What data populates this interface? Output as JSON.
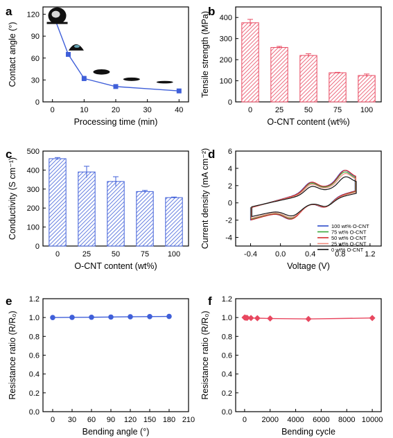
{
  "colors": {
    "blue": "#3f5fd9",
    "red": "#e8475f",
    "axis": "#000000"
  },
  "chart_data": [
    {
      "id": "a",
      "panel_letter": "a",
      "type": "line",
      "xlabel": "Processing time (min)",
      "ylabel": "Contact angle (°)",
      "xlim": [
        -3,
        43
      ],
      "ylim": [
        0,
        130
      ],
      "xticks": [
        0,
        10,
        20,
        30,
        40
      ],
      "yticks": [
        0,
        30,
        60,
        90,
        120
      ],
      "x": [
        0,
        5,
        10,
        20,
        40
      ],
      "series": [
        {
          "values": [
            122,
            65,
            32,
            21,
            15
          ],
          "errors": [
            1.5,
            2.5,
            3,
            1,
            1
          ],
          "color": "#3f5fd9",
          "marker": "square"
        }
      ],
      "droplets": [
        {
          "x": 1.5,
          "y": 118,
          "shape": "sphere"
        },
        {
          "x": 7.5,
          "y": 76,
          "shape": "cap"
        },
        {
          "x": 15.5,
          "y": 41,
          "shape": "lens"
        },
        {
          "x": 25,
          "y": 31,
          "shape": "thin"
        },
        {
          "x": 35.5,
          "y": 27,
          "shape": "film"
        }
      ]
    },
    {
      "id": "b",
      "panel_letter": "b",
      "type": "bar",
      "xlabel": "O-CNT content (wt%)",
      "ylabel": "Tensile strength (MPa)",
      "categories": [
        "0",
        "25",
        "50",
        "75",
        "100"
      ],
      "values": [
        375,
        258,
        220,
        138,
        125
      ],
      "errors": [
        16,
        5,
        8,
        2,
        7
      ],
      "ylim": [
        0,
        450
      ],
      "yticks": [
        0,
        100,
        200,
        300,
        400
      ],
      "color": "#e8475f"
    },
    {
      "id": "c",
      "panel_letter": "c",
      "type": "bar",
      "xlabel": "O-CNT content (wt%)",
      "ylabel": "Conductivity (S cm⁻¹)",
      "categories": [
        "0",
        "25",
        "50",
        "75",
        "100"
      ],
      "values": [
        460,
        390,
        340,
        287,
        255
      ],
      "errors": [
        6,
        30,
        25,
        6,
        3
      ],
      "ylim": [
        0,
        500
      ],
      "yticks": [
        0,
        100,
        200,
        300,
        400,
        500
      ],
      "color": "#3f5fd9"
    },
    {
      "id": "d",
      "panel_letter": "d",
      "type": "line",
      "xlabel": "Voltage (V)",
      "ylabel": "Current density (mA cm⁻²)",
      "xlim": [
        -0.6,
        1.35
      ],
      "ylim": [
        -5,
        6
      ],
      "xticks": [
        -0.4,
        0.0,
        0.4,
        0.8,
        1.2
      ],
      "yticks": [
        -4,
        -2,
        0,
        2,
        4,
        6
      ],
      "legend_position": "bottom-right",
      "series": [
        {
          "name": "100 wt% O-CNT",
          "color": "#2a49c9",
          "scale": 1.0
        },
        {
          "name": "75 wt% O-CNT",
          "color": "#3aa83a",
          "scale": 0.95
        },
        {
          "name": "50 wt% O-CNT",
          "color": "#d42a2a",
          "scale": 1.0
        },
        {
          "name": "25 wt% O-CNT",
          "color": "#f08a7c",
          "scale": 0.9
        },
        {
          "name": "0 wt% O-CNT",
          "color": "#111111",
          "scale": 0.8
        }
      ]
    },
    {
      "id": "e",
      "panel_letter": "e",
      "type": "line",
      "xlabel": "Bending angle (°)",
      "ylabel": "Resistance ratio (R/R₀)",
      "xlim": [
        -15,
        210
      ],
      "ylim": [
        0,
        1.2
      ],
      "xticks": [
        0,
        30,
        60,
        90,
        120,
        150,
        180,
        210
      ],
      "yticks": [
        0.0,
        0.2,
        0.4,
        0.6,
        0.8,
        1.0,
        1.2
      ],
      "x": [
        0,
        30,
        60,
        90,
        120,
        150,
        180
      ],
      "series": [
        {
          "values": [
            1.0,
            1.002,
            1.003,
            1.005,
            1.008,
            1.01,
            1.012
          ],
          "color": "#3f5fd9",
          "marker": "circle"
        }
      ]
    },
    {
      "id": "f",
      "panel_letter": "f",
      "type": "line",
      "xlabel": "Bending cycle",
      "ylabel": "Resistance ratio (R/R₀)",
      "xlim": [
        -700,
        10700
      ],
      "ylim": [
        0,
        1.2
      ],
      "xticks": [
        0,
        2000,
        4000,
        6000,
        8000,
        10000
      ],
      "yticks": [
        0.0,
        0.2,
        0.4,
        0.6,
        0.8,
        1.0,
        1.2
      ],
      "x": [
        0,
        100,
        200,
        500,
        1000,
        2000,
        5000,
        10000
      ],
      "series": [
        {
          "values": [
            1.0,
            0.998,
            0.997,
            0.995,
            0.993,
            0.99,
            0.985,
            0.995
          ],
          "color": "#e8475f",
          "marker": "diamond"
        }
      ]
    }
  ]
}
